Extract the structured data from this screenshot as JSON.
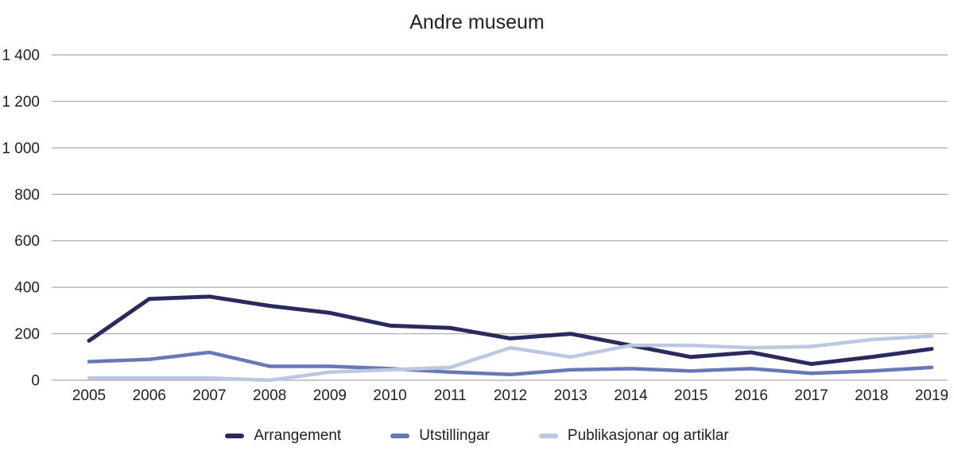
{
  "chart_data": {
    "type": "line",
    "title": "Andre museum",
    "x": [
      2005,
      2006,
      2007,
      2008,
      2009,
      2010,
      2011,
      2012,
      2013,
      2014,
      2015,
      2016,
      2017,
      2018,
      2019
    ],
    "series": [
      {
        "name": "Arrangement",
        "color": "#2b2a5f",
        "values": [
          170,
          350,
          360,
          320,
          290,
          235,
          225,
          180,
          200,
          150,
          100,
          120,
          70,
          100,
          135
        ]
      },
      {
        "name": "Utstillingar",
        "color": "#6679b6",
        "values": [
          80,
          90,
          120,
          60,
          60,
          50,
          35,
          25,
          45,
          50,
          40,
          50,
          30,
          40,
          55
        ]
      },
      {
        "name": "Publikasjonar og artiklar",
        "color": "#bcc7e4",
        "values": [
          10,
          10,
          10,
          0,
          35,
          45,
          55,
          140,
          100,
          150,
          150,
          140,
          145,
          175,
          190
        ]
      }
    ],
    "ylim": [
      0,
      1400
    ],
    "ytick_interval": 200,
    "ytick_labels": [
      "0",
      "200",
      "400",
      "600",
      "800",
      "1 000",
      "1 200",
      "1 400"
    ],
    "xlabel": "",
    "ylabel": "",
    "grid": "horizontal",
    "legend_position": "bottom",
    "colors": {
      "grid": "#a7a9ac",
      "text": "#231f20",
      "background": "#ffffff"
    }
  }
}
